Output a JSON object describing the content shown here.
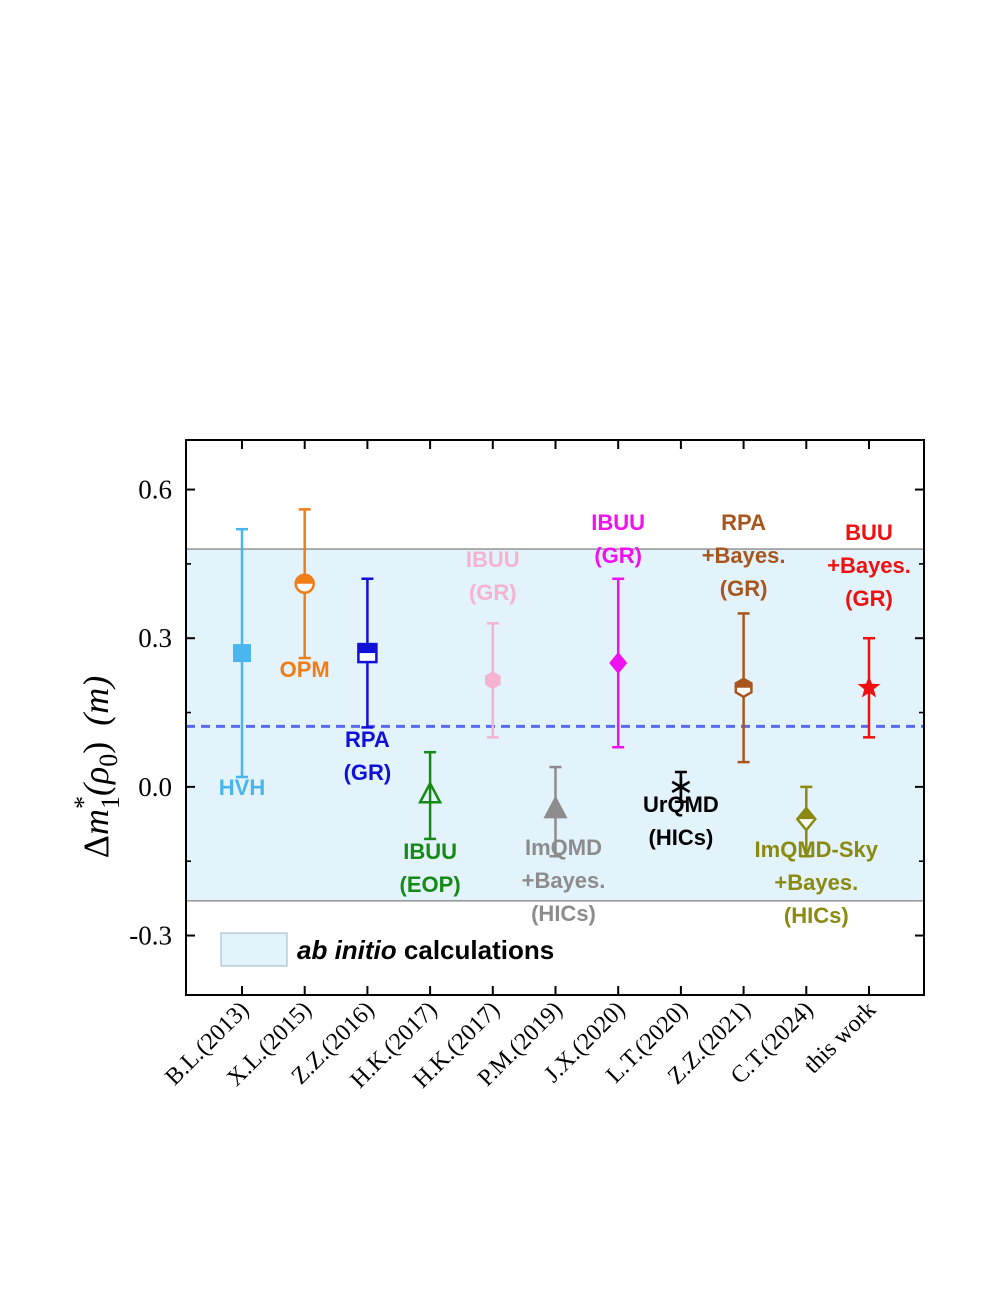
{
  "chart_data": {
    "type": "scatter",
    "ylabel": {
      "prefix": "Δ",
      "m": "m",
      "sup": "*",
      "sub": "1",
      "arg": "(ρ",
      "arg_sub": "0",
      "arg_close": ")",
      "unit": "(m)"
    },
    "ylim": [
      -0.42,
      0.7
    ],
    "yticks": [
      "0.6",
      "0.3",
      "0.0",
      "-0.3"
    ],
    "ytick_values": [
      0.6,
      0.3,
      0.0,
      -0.3
    ],
    "categories": [
      "B.L.(2013)",
      "X.L.(2015)",
      "Z.Z.(2016)",
      "H.K.(2017)",
      "H.K.(2017)",
      "P.M.(2019)",
      "J.X.(2020)",
      "L.T.(2020)",
      "Z.Z.(2021)",
      "C.T.(2024)",
      "this work"
    ],
    "band": {
      "low": -0.23,
      "high": 0.48,
      "legend": {
        "italic": "ab initio",
        "rest": "calculations"
      }
    },
    "dashed_line": 0.122,
    "points": [
      {
        "y": 0.27,
        "lo": 0.02,
        "hi": 0.52,
        "color": "#4ab6f0",
        "marker": "square-filled",
        "label": [
          "HVH"
        ]
      },
      {
        "y": 0.41,
        "lo": 0.26,
        "hi": 0.56,
        "color": "#f07d18",
        "marker": "circle-half",
        "label": [
          "OPM"
        ]
      },
      {
        "y": 0.27,
        "lo": 0.12,
        "hi": 0.42,
        "color": "#1010d8",
        "marker": "square-half",
        "label": [
          "RPA",
          "(GR)"
        ]
      },
      {
        "y": -0.015,
        "lo": -0.105,
        "hi": 0.07,
        "color": "#168a16",
        "marker": "triangle-open",
        "label": [
          "IBUU",
          "(EOP)"
        ]
      },
      {
        "y": 0.215,
        "lo": 0.1,
        "hi": 0.33,
        "color": "#f5b3d0",
        "marker": "hexagon-filled",
        "label": [
          "IBUU",
          "(GR)"
        ]
      },
      {
        "y": -0.045,
        "lo": -0.14,
        "hi": 0.04,
        "color": "#8c8c8c",
        "marker": "triangle-filled",
        "label": [
          "ImQMD",
          "+Bayes.",
          "(HICs)"
        ]
      },
      {
        "y": 0.25,
        "lo": 0.08,
        "hi": 0.42,
        "color": "#f010f0",
        "marker": "diamond-filled",
        "label": [
          "IBUU",
          "(GR)"
        ]
      },
      {
        "y": 0.0,
        "lo": -0.03,
        "hi": 0.03,
        "color": "#000000",
        "marker": "asterisk",
        "label": [
          "UrQMD",
          "(HICs)"
        ]
      },
      {
        "y": 0.2,
        "lo": 0.05,
        "hi": 0.35,
        "color": "#a8561e",
        "marker": "hexagon-half",
        "label": [
          "RPA",
          "+Bayes.",
          "(GR)"
        ]
      },
      {
        "y": -0.065,
        "lo": -0.14,
        "hi": 0.0,
        "color": "#8a8a10",
        "marker": "diamond-half",
        "label": [
          "ImQMD-Sky",
          "+Bayes.",
          "(HICs)"
        ]
      },
      {
        "y": 0.2,
        "lo": 0.1,
        "hi": 0.3,
        "color": "#f01010",
        "marker": "star",
        "label": [
          "BUU",
          "+Bayes.",
          "(GR)"
        ]
      }
    ]
  }
}
